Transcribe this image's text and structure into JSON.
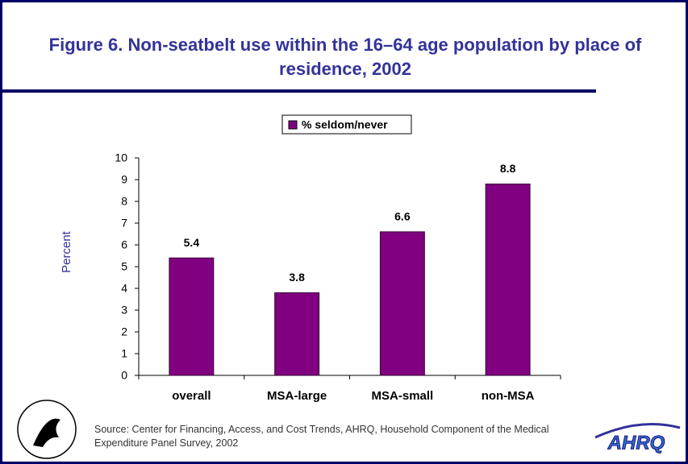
{
  "chart_data": {
    "type": "bar",
    "title": "Figure 6. Non-seatbelt use within the 16–64 age population by place of residence, 2002",
    "y_label": "Percent",
    "categories": [
      "overall",
      "MSA-large",
      "MSA-small",
      "non-MSA"
    ],
    "series": [
      {
        "name": "% seldom/never",
        "color": "#800080",
        "values": [
          5.4,
          3.8,
          6.6,
          8.8
        ]
      }
    ],
    "ylim": [
      0,
      10
    ],
    "yticks": [
      0,
      1,
      2,
      3,
      4,
      5,
      6,
      7,
      8,
      9,
      10
    ],
    "legend": "top",
    "source": "Source: Center for Financing, Access, and Cost Trends, AHRQ, Household Component of the Medical Expenditure Panel Survey, 2002",
    "logo": "AHRQ"
  }
}
